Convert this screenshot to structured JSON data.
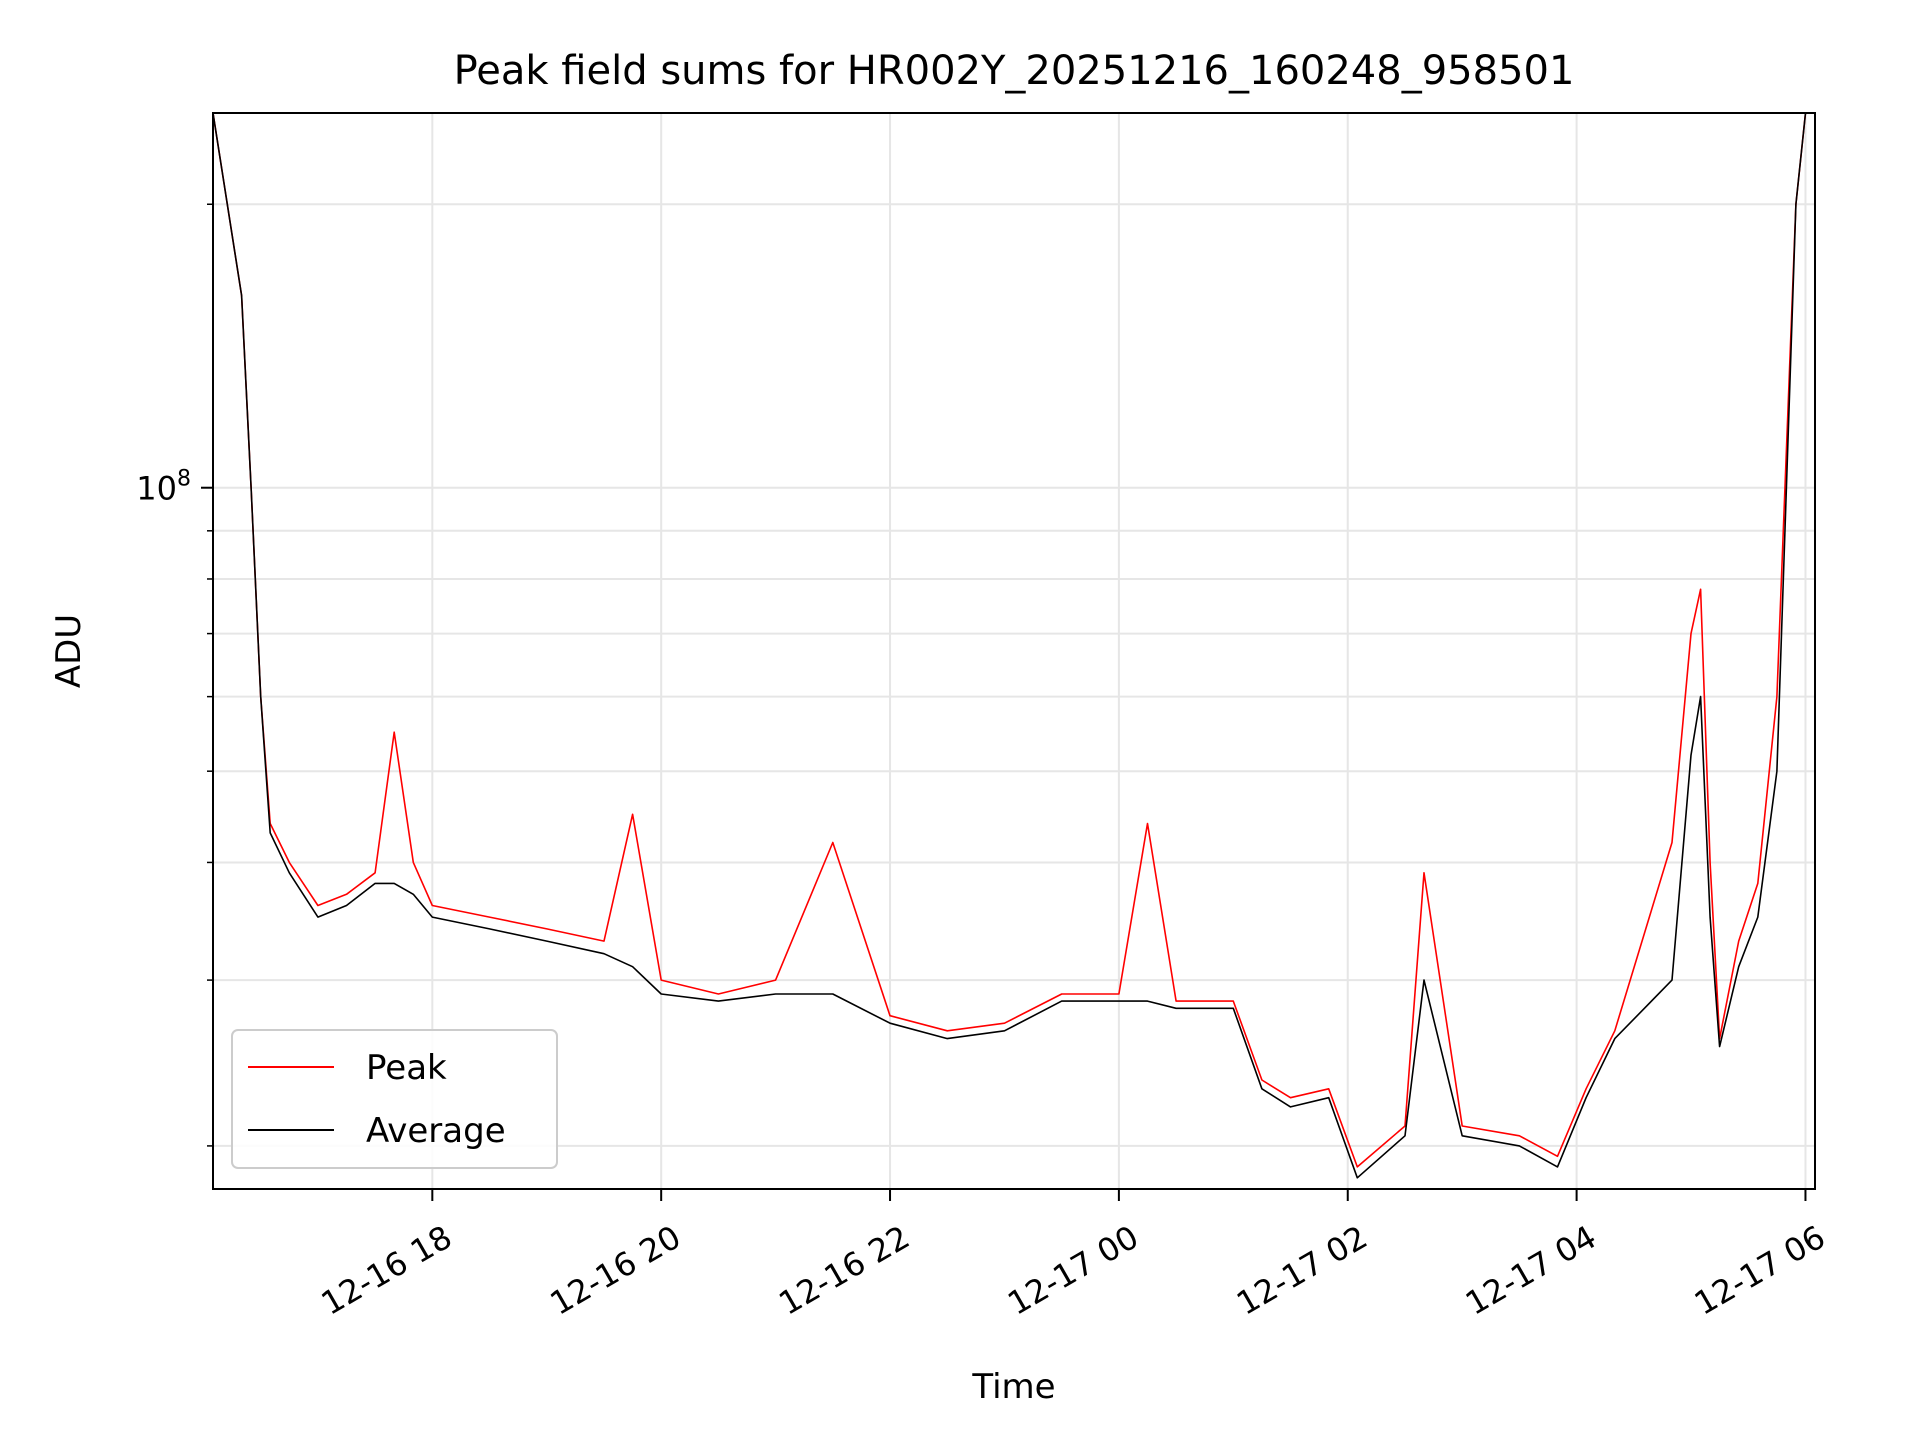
{
  "chart_data": {
    "type": "line",
    "title": "Peak field sums for HR002Y_20251216_160248_958501",
    "xlabel": "Time",
    "ylabel": "ADU",
    "y_scale": "log",
    "ylim": [
      18000000,
      250000000
    ],
    "xlim": [
      "2025-12-16 16:05",
      "2025-12-17 06:05"
    ],
    "x_ticks": [
      {
        "value": "2025-12-16 18:00",
        "label": "12-16 18"
      },
      {
        "value": "2025-12-16 20:00",
        "label": "12-16 20"
      },
      {
        "value": "2025-12-16 22:00",
        "label": "12-16 22"
      },
      {
        "value": "2025-12-17 00:00",
        "label": "12-17 00"
      },
      {
        "value": "2025-12-17 02:00",
        "label": "12-17 02"
      },
      {
        "value": "2025-12-17 04:00",
        "label": "12-17 04"
      },
      {
        "value": "2025-12-17 06:00",
        "label": "12-17 06"
      }
    ],
    "y_ticks": [
      {
        "value": 100000000,
        "label_base": "10",
        "label_exp": "8"
      }
    ],
    "grid": true,
    "legend_position": "lower-left",
    "series": [
      {
        "name": "Peak",
        "color": "#ff0000",
        "x": [
          "2025-12-16 16:05",
          "2025-12-16 16:20",
          "2025-12-16 16:25",
          "2025-12-16 16:30",
          "2025-12-16 16:35",
          "2025-12-16 16:45",
          "2025-12-16 17:00",
          "2025-12-16 17:15",
          "2025-12-16 17:30",
          "2025-12-16 17:40",
          "2025-12-16 17:50",
          "2025-12-16 18:00",
          "2025-12-16 18:30",
          "2025-12-16 19:00",
          "2025-12-16 19:30",
          "2025-12-16 19:45",
          "2025-12-16 20:00",
          "2025-12-16 20:30",
          "2025-12-16 21:00",
          "2025-12-16 21:30",
          "2025-12-16 22:00",
          "2025-12-16 22:30",
          "2025-12-16 23:00",
          "2025-12-16 23:30",
          "2025-12-17 00:00",
          "2025-12-17 00:15",
          "2025-12-17 00:30",
          "2025-12-17 01:00",
          "2025-12-17 01:15",
          "2025-12-17 01:30",
          "2025-12-17 01:50",
          "2025-12-17 02:05",
          "2025-12-17 02:30",
          "2025-12-17 02:40",
          "2025-12-17 03:00",
          "2025-12-17 03:30",
          "2025-12-17 03:50",
          "2025-12-17 04:05",
          "2025-12-17 04:20",
          "2025-12-17 04:50",
          "2025-12-17 05:00",
          "2025-12-17 05:05",
          "2025-12-17 05:10",
          "2025-12-17 05:15",
          "2025-12-17 05:25",
          "2025-12-17 05:35",
          "2025-12-17 05:45",
          "2025-12-17 05:55",
          "2025-12-17 06:00"
        ],
        "values": [
          250000000,
          160000000,
          100000000,
          60000000,
          44000000,
          40000000,
          36000000,
          37000000,
          39000000,
          55000000,
          40000000,
          36000000,
          35000000,
          34000000,
          33000000,
          45000000,
          30000000,
          29000000,
          30000000,
          42000000,
          27500000,
          26500000,
          27000000,
          29000000,
          29000000,
          44000000,
          28500000,
          28500000,
          23500000,
          22500000,
          23000000,
          19000000,
          21000000,
          39000000,
          21000000,
          20500000,
          19500000,
          23000000,
          26500000,
          42000000,
          70000000,
          78000000,
          40000000,
          26000000,
          33000000,
          38000000,
          60000000,
          200000000,
          250000000
        ]
      },
      {
        "name": "Average",
        "color": "#000000",
        "x": [
          "2025-12-16 16:05",
          "2025-12-16 16:20",
          "2025-12-16 16:25",
          "2025-12-16 16:30",
          "2025-12-16 16:35",
          "2025-12-16 16:45",
          "2025-12-16 17:00",
          "2025-12-16 17:15",
          "2025-12-16 17:30",
          "2025-12-16 17:40",
          "2025-12-16 17:50",
          "2025-12-16 18:00",
          "2025-12-16 18:30",
          "2025-12-16 19:00",
          "2025-12-16 19:30",
          "2025-12-16 19:45",
          "2025-12-16 20:00",
          "2025-12-16 20:30",
          "2025-12-16 21:00",
          "2025-12-16 21:30",
          "2025-12-16 22:00",
          "2025-12-16 22:30",
          "2025-12-16 23:00",
          "2025-12-16 23:30",
          "2025-12-17 00:00",
          "2025-12-17 00:15",
          "2025-12-17 00:30",
          "2025-12-17 01:00",
          "2025-12-17 01:15",
          "2025-12-17 01:30",
          "2025-12-17 01:50",
          "2025-12-17 02:05",
          "2025-12-17 02:30",
          "2025-12-17 02:40",
          "2025-12-17 03:00",
          "2025-12-17 03:30",
          "2025-12-17 03:50",
          "2025-12-17 04:05",
          "2025-12-17 04:20",
          "2025-12-17 04:50",
          "2025-12-17 05:00",
          "2025-12-17 05:05",
          "2025-12-17 05:10",
          "2025-12-17 05:15",
          "2025-12-17 05:25",
          "2025-12-17 05:35",
          "2025-12-17 05:45",
          "2025-12-17 05:55",
          "2025-12-17 06:00"
        ],
        "values": [
          250000000,
          160000000,
          100000000,
          60000000,
          43000000,
          39000000,
          35000000,
          36000000,
          38000000,
          38000000,
          37000000,
          35000000,
          34000000,
          33000000,
          32000000,
          31000000,
          29000000,
          28500000,
          29000000,
          29000000,
          27000000,
          26000000,
          26500000,
          28500000,
          28500000,
          28500000,
          28000000,
          28000000,
          23000000,
          22000000,
          22500000,
          18500000,
          20500000,
          30000000,
          20500000,
          20000000,
          19000000,
          22500000,
          26000000,
          30000000,
          52000000,
          60000000,
          35000000,
          25500000,
          31000000,
          35000000,
          50000000,
          200000000,
          250000000
        ]
      }
    ]
  }
}
